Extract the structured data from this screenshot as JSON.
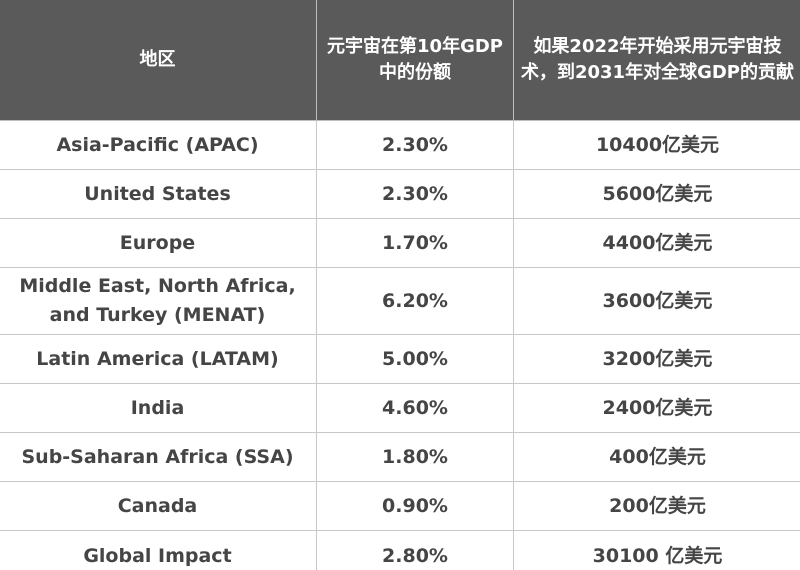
{
  "header": {
    "region": "地区",
    "share": "元宇宙在第10年GDP中的份额",
    "contribution": "如果2022年开始采用元宇宙技术，到2031年对全球GDP的贡献"
  },
  "rows": [
    {
      "region": "Asia-Pacific (APAC)",
      "share": "2.30%",
      "contribution": "10400亿美元"
    },
    {
      "region": "United States",
      "share": "2.30%",
      "contribution": "5600亿美元"
    },
    {
      "region": "Europe",
      "share": "1.70%",
      "contribution": "4400亿美元"
    },
    {
      "region": "Middle East, North Africa, and Turkey (MENAT)",
      "share": "6.20%",
      "contribution": "3600亿美元"
    },
    {
      "region": "Latin America (LATAM)",
      "share": "5.00%",
      "contribution": "3200亿美元"
    },
    {
      "region": "India",
      "share": "4.60%",
      "contribution": "2400亿美元"
    },
    {
      "region": "Sub-Saharan Africa (SSA)",
      "share": "1.80%",
      "contribution": "400亿美元"
    },
    {
      "region": "Canada",
      "share": "0.90%",
      "contribution": "200亿美元"
    },
    {
      "region": "Global Impact",
      "share": "2.80%",
      "contribution": "30100 亿美元"
    }
  ],
  "colors": {
    "header_bg": "#5a5a5a",
    "header_text": "#ffffff",
    "body_text": "#454545",
    "border": "#c8c8c8"
  }
}
